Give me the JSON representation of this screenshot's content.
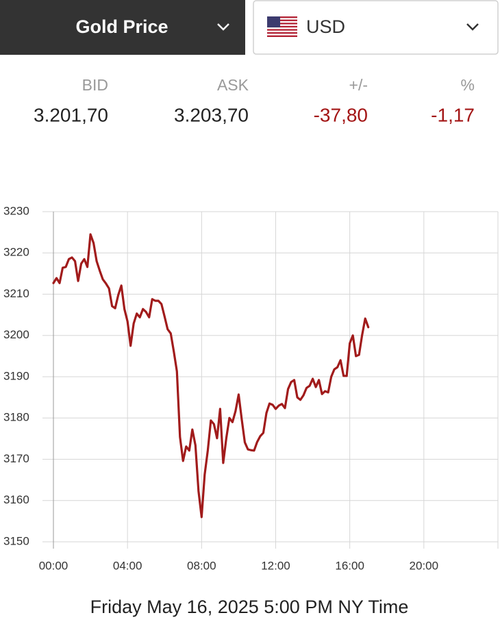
{
  "header": {
    "selector": "Gold Price",
    "currency": "USD"
  },
  "quote": {
    "columns": [
      {
        "label": "BID",
        "value": "3.201,70",
        "color": "#222222"
      },
      {
        "label": "ASK",
        "value": "3.203,70",
        "color": "#222222"
      },
      {
        "label": "+/-",
        "value": "-37,80",
        "color": "#a31515"
      },
      {
        "label": "%",
        "value": "-1,17",
        "color": "#a31515"
      }
    ]
  },
  "chart_data": {
    "type": "line",
    "color": "#a11b1b",
    "grid": true,
    "x": [
      0,
      10,
      20,
      30,
      40,
      50,
      60,
      70,
      80,
      90,
      100,
      110,
      120,
      130,
      140,
      150,
      160,
      170,
      180,
      190,
      200,
      210,
      220,
      230,
      240,
      250,
      260,
      270,
      280,
      290,
      300,
      310,
      320,
      330,
      340,
      350,
      360,
      370,
      380,
      390,
      400,
      410,
      420,
      430,
      440,
      450,
      460,
      470,
      480,
      490,
      500,
      510,
      520,
      530,
      540,
      550,
      560,
      570,
      580,
      590,
      600,
      610,
      620,
      630,
      640,
      650,
      660,
      670,
      680,
      690,
      700,
      710,
      720,
      730,
      740,
      750,
      760,
      770,
      780,
      790,
      800,
      810,
      820,
      830,
      840,
      850,
      860,
      870,
      880,
      890,
      900,
      910,
      920,
      930,
      940,
      950,
      960,
      970,
      980,
      990,
      1000,
      1010,
      1020
    ],
    "values": [
      3212.7,
      3213.9,
      3212.7,
      3216.4,
      3216.6,
      3218.5,
      3218.9,
      3218,
      3213.2,
      3217.4,
      3218.5,
      3216.6,
      3224.5,
      3222.4,
      3218,
      3215.7,
      3213.6,
      3212.6,
      3211.4,
      3207.1,
      3206.6,
      3209.8,
      3212.1,
      3206.4,
      3203.4,
      3197.5,
      3202.9,
      3205.3,
      3204.4,
      3206.4,
      3205.7,
      3204.4,
      3208.8,
      3208.4,
      3208.4,
      3207.6,
      3204.6,
      3201.5,
      3200.5,
      3196.1,
      3191.3,
      3175.4,
      3169.6,
      3173.1,
      3172.1,
      3177.2,
      3173.4,
      3162.3,
      3156,
      3166.3,
      3172.1,
      3179.4,
      3178.5,
      3175.1,
      3182.2,
      3169.1,
      3175.1,
      3180,
      3179,
      3181.7,
      3185.7,
      3179.7,
      3174.1,
      3172.4,
      3172.2,
      3172.1,
      3174.2,
      3175.6,
      3176.4,
      3181.2,
      3183.5,
      3183.2,
      3182.2,
      3183,
      3183.4,
      3182.4,
      3187,
      3188.7,
      3189.2,
      3185,
      3184.4,
      3185.5,
      3187.3,
      3187.8,
      3189.5,
      3187.5,
      3189.2,
      3185.8,
      3186.5,
      3186.2,
      3190,
      3191.8,
      3192.3,
      3194,
      3190.2,
      3190.2,
      3198.1,
      3200,
      3195,
      3195.3,
      3200.1,
      3204.1,
      3202
    ],
    "xlim": [
      0,
      1440
    ],
    "xticks": [
      {
        "value": 0,
        "label": "00:00"
      },
      {
        "value": 240,
        "label": "04:00"
      },
      {
        "value": 480,
        "label": "08:00"
      },
      {
        "value": 720,
        "label": "12:00"
      },
      {
        "value": 960,
        "label": "16:00"
      },
      {
        "value": 1200,
        "label": "20:00"
      }
    ],
    "ylim": [
      3150,
      3230
    ],
    "yticks": [
      3150,
      3160,
      3170,
      3180,
      3190,
      3200,
      3210,
      3220,
      3230
    ],
    "footer": "Friday May 16, 2025 5:00 PM NY Time"
  }
}
